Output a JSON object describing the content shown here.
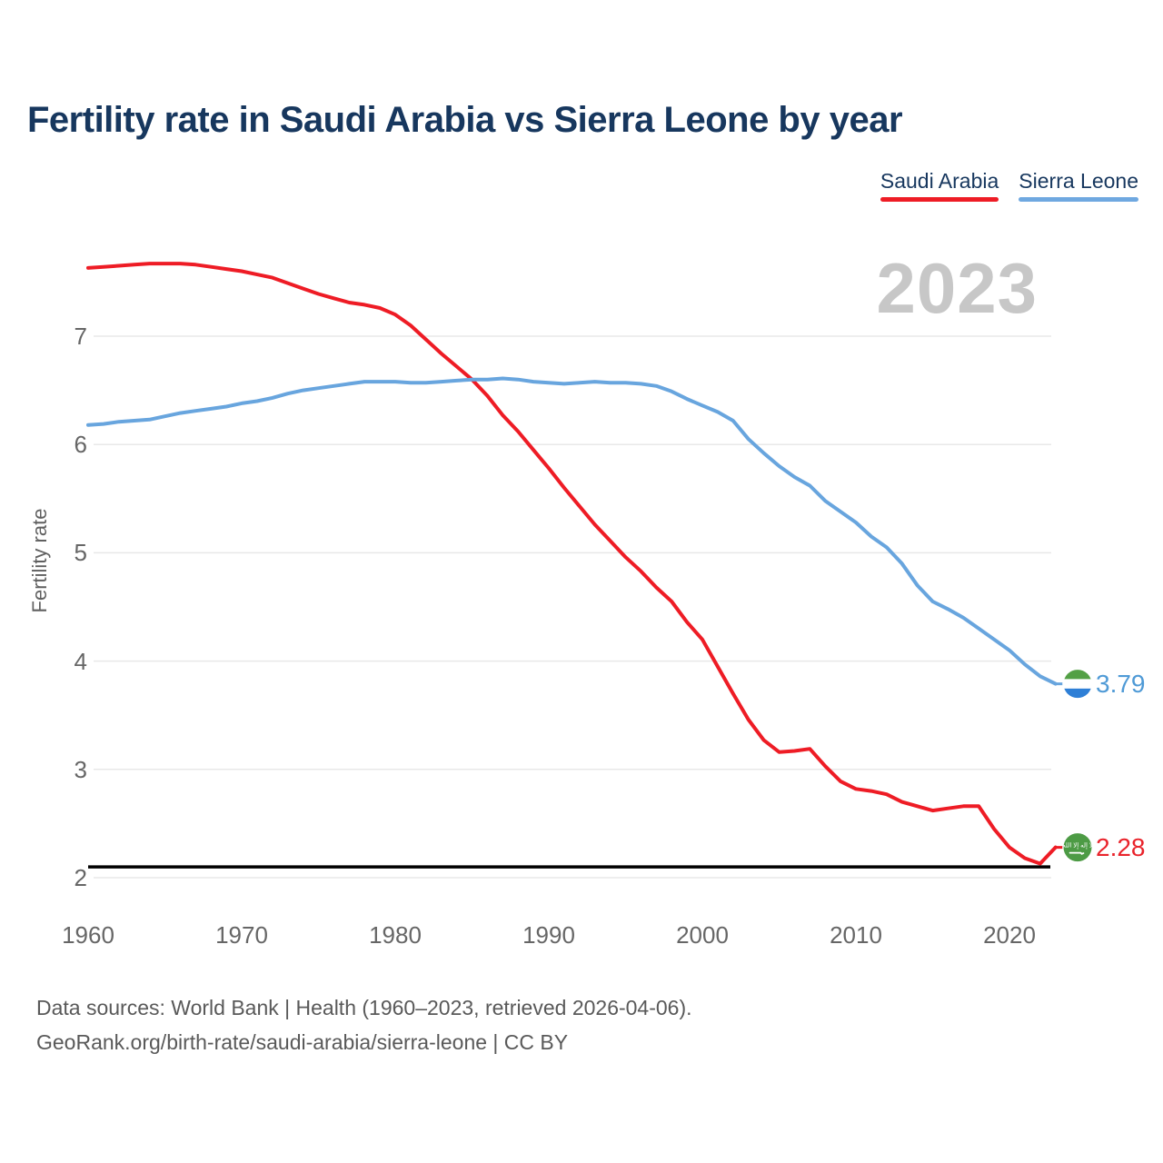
{
  "header": {
    "title": "Fertility rate in Saudi Arabia vs Sierra Leone by year",
    "watermark": "2023"
  },
  "legend": {
    "items": [
      {
        "label": "Saudi Arabia",
        "color": "#ee1c25"
      },
      {
        "label": "Sierra Leone",
        "color": "#6fa8e0"
      }
    ]
  },
  "end_labels": {
    "sierra_leone": {
      "value": "3.79"
    },
    "saudi_arabia": {
      "value": "2.28"
    }
  },
  "flags": {
    "saudi_script": "لا إله إلا الله",
    "saudi_green": "#4d9b45",
    "sierra_green": "#53a045",
    "sierra_blue": "#2e7fd6"
  },
  "footer": {
    "line1": "Data sources: World Bank | Health (1960–2023, retrieved 2026-04-06).",
    "line2": "GeoRank.org/birth-rate/saudi-arabia/sierra-leone | CC BY"
  },
  "chart_data": {
    "type": "line",
    "title": "Fertility rate in Saudi Arabia vs Sierra Leone by year",
    "xlabel": "",
    "ylabel": "Fertility rate",
    "x_ticks": [
      1960,
      1970,
      1980,
      1990,
      2000,
      2010,
      2020
    ],
    "y_ticks": [
      2,
      3,
      4,
      5,
      6,
      7
    ],
    "xlim": [
      1960,
      2023
    ],
    "ylim": [
      1.9,
      7.8
    ],
    "grid": "horizontal-only",
    "legend_position": "top-right",
    "annotation_year": "2023",
    "reference_line": {
      "value": 2.1,
      "color": "#000000"
    },
    "x": [
      1960,
      1961,
      1962,
      1963,
      1964,
      1965,
      1966,
      1967,
      1968,
      1969,
      1970,
      1971,
      1972,
      1973,
      1974,
      1975,
      1976,
      1977,
      1978,
      1979,
      1980,
      1981,
      1982,
      1983,
      1984,
      1985,
      1986,
      1987,
      1988,
      1989,
      1990,
      1991,
      1992,
      1993,
      1994,
      1995,
      1996,
      1997,
      1998,
      1999,
      2000,
      2001,
      2002,
      2003,
      2004,
      2005,
      2006,
      2007,
      2008,
      2009,
      2010,
      2011,
      2012,
      2013,
      2014,
      2015,
      2016,
      2017,
      2018,
      2019,
      2020,
      2021,
      2022,
      2023
    ],
    "series": [
      {
        "name": "Saudi Arabia",
        "color": "#ee1c25",
        "end_value": 2.28,
        "values": [
          7.63,
          7.64,
          7.65,
          7.66,
          7.67,
          7.67,
          7.67,
          7.66,
          7.64,
          7.62,
          7.6,
          7.57,
          7.54,
          7.49,
          7.44,
          7.39,
          7.35,
          7.31,
          7.29,
          7.26,
          7.2,
          7.1,
          6.97,
          6.84,
          6.72,
          6.6,
          6.45,
          6.27,
          6.12,
          5.95,
          5.78,
          5.6,
          5.43,
          5.26,
          5.11,
          4.96,
          4.83,
          4.68,
          4.55,
          4.36,
          4.2,
          3.95,
          3.7,
          3.46,
          3.27,
          3.16,
          3.17,
          3.19,
          3.03,
          2.89,
          2.82,
          2.8,
          2.77,
          2.7,
          2.66,
          2.62,
          2.64,
          2.66,
          2.66,
          2.45,
          2.28,
          2.18,
          2.13,
          2.28
        ]
      },
      {
        "name": "Sierra Leone",
        "color": "#68a5de",
        "end_value": 3.79,
        "values": [
          6.18,
          6.19,
          6.21,
          6.22,
          6.23,
          6.26,
          6.29,
          6.31,
          6.33,
          6.35,
          6.38,
          6.4,
          6.43,
          6.47,
          6.5,
          6.52,
          6.54,
          6.56,
          6.58,
          6.58,
          6.58,
          6.57,
          6.57,
          6.58,
          6.59,
          6.6,
          6.6,
          6.61,
          6.6,
          6.58,
          6.57,
          6.56,
          6.57,
          6.58,
          6.57,
          6.57,
          6.56,
          6.54,
          6.49,
          6.42,
          6.36,
          6.3,
          6.22,
          6.05,
          5.92,
          5.8,
          5.7,
          5.62,
          5.48,
          5.38,
          5.28,
          5.15,
          5.05,
          4.9,
          4.7,
          4.55,
          4.48,
          4.4,
          4.3,
          4.2,
          4.1,
          3.97,
          3.86,
          3.79
        ]
      }
    ]
  }
}
